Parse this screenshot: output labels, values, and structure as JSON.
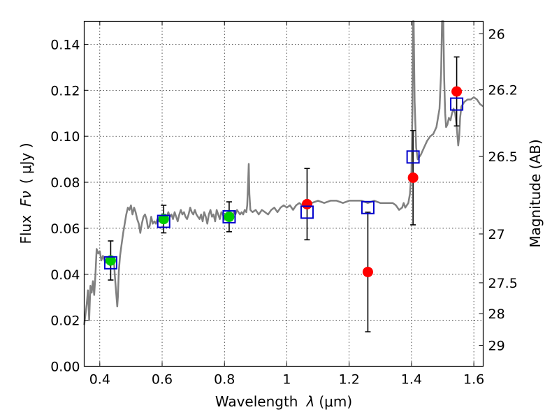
{
  "chart_data": {
    "type": "scatter",
    "xlabel_prefix": "Wavelength",
    "xlabel_symbol": "λ",
    "xlabel_unit": "(μm)",
    "ylabel_prefix": "Flux",
    "ylabel_symbol": "Fν",
    "ylabel_unit": "( μJy )",
    "y2label": "Magnitude (AB)",
    "xlim": [
      0.35,
      1.63
    ],
    "ylim": [
      0.0,
      0.15
    ],
    "grid": true,
    "x_ticks": [
      {
        "value": 0.4,
        "label": "0.4"
      },
      {
        "value": 0.6,
        "label": "0.6"
      },
      {
        "value": 0.8,
        "label": "0.8"
      },
      {
        "value": 1.0,
        "label": "1"
      },
      {
        "value": 1.2,
        "label": "1.2"
      },
      {
        "value": 1.4,
        "label": "1.4"
      },
      {
        "value": 1.6,
        "label": "1.6"
      }
    ],
    "y_ticks": [
      {
        "value": 0.0,
        "label": "0.00"
      },
      {
        "value": 0.02,
        "label": "0.02"
      },
      {
        "value": 0.04,
        "label": "0.04"
      },
      {
        "value": 0.06,
        "label": "0.06"
      },
      {
        "value": 0.08,
        "label": "0.08"
      },
      {
        "value": 0.1,
        "label": "0.10"
      },
      {
        "value": 0.12,
        "label": "0.12"
      },
      {
        "value": 0.14,
        "label": "0.14"
      }
    ],
    "y2_ticks": [
      {
        "magnitude": 26,
        "label": "26"
      },
      {
        "magnitude": 26.2,
        "label": "26.2"
      },
      {
        "magnitude": 26.5,
        "label": "26.5"
      },
      {
        "magnitude": 27,
        "label": "27"
      },
      {
        "magnitude": 27.5,
        "label": "27.5"
      },
      {
        "magnitude": 28,
        "label": "28"
      },
      {
        "magnitude": 29,
        "label": "29"
      }
    ],
    "spectrum": {
      "color": "#808080",
      "points": [
        [
          0.35,
          0.018
        ],
        [
          0.358,
          0.027
        ],
        [
          0.362,
          0.033
        ],
        [
          0.366,
          0.02
        ],
        [
          0.37,
          0.035
        ],
        [
          0.374,
          0.032
        ],
        [
          0.378,
          0.037
        ],
        [
          0.382,
          0.031
        ],
        [
          0.386,
          0.04
        ],
        [
          0.39,
          0.051
        ],
        [
          0.395,
          0.049
        ],
        [
          0.4,
          0.05
        ],
        [
          0.405,
          0.046
        ],
        [
          0.41,
          0.048
        ],
        [
          0.418,
          0.045
        ],
        [
          0.425,
          0.047
        ],
        [
          0.432,
          0.044
        ],
        [
          0.44,
          0.046
        ],
        [
          0.445,
          0.047
        ],
        [
          0.448,
          0.04
        ],
        [
          0.452,
          0.033
        ],
        [
          0.456,
          0.026
        ],
        [
          0.458,
          0.03
        ],
        [
          0.461,
          0.041
        ],
        [
          0.465,
          0.048
        ],
        [
          0.47,
          0.053
        ],
        [
          0.475,
          0.058
        ],
        [
          0.48,
          0.062
        ],
        [
          0.485,
          0.066
        ],
        [
          0.49,
          0.069
        ],
        [
          0.495,
          0.068
        ],
        [
          0.5,
          0.07
        ],
        [
          0.505,
          0.066
        ],
        [
          0.51,
          0.069
        ],
        [
          0.515,
          0.067
        ],
        [
          0.52,
          0.064
        ],
        [
          0.525,
          0.062
        ],
        [
          0.53,
          0.058
        ],
        [
          0.535,
          0.062
        ],
        [
          0.54,
          0.065
        ],
        [
          0.545,
          0.066
        ],
        [
          0.55,
          0.064
        ],
        [
          0.555,
          0.06
        ],
        [
          0.56,
          0.061
        ],
        [
          0.565,
          0.065
        ],
        [
          0.57,
          0.062
        ],
        [
          0.575,
          0.063
        ],
        [
          0.58,
          0.062
        ],
        [
          0.585,
          0.064
        ],
        [
          0.59,
          0.063
        ],
        [
          0.595,
          0.065
        ],
        [
          0.6,
          0.066
        ],
        [
          0.605,
          0.064
        ],
        [
          0.61,
          0.066
        ],
        [
          0.615,
          0.065
        ],
        [
          0.62,
          0.067
        ],
        [
          0.625,
          0.065
        ],
        [
          0.63,
          0.066
        ],
        [
          0.635,
          0.064
        ],
        [
          0.64,
          0.067
        ],
        [
          0.645,
          0.065
        ],
        [
          0.65,
          0.063
        ],
        [
          0.655,
          0.066
        ],
        [
          0.66,
          0.068
        ],
        [
          0.665,
          0.066
        ],
        [
          0.67,
          0.067
        ],
        [
          0.675,
          0.065
        ],
        [
          0.68,
          0.064
        ],
        [
          0.685,
          0.066
        ],
        [
          0.69,
          0.069
        ],
        [
          0.695,
          0.067
        ],
        [
          0.7,
          0.066
        ],
        [
          0.705,
          0.068
        ],
        [
          0.71,
          0.066
        ],
        [
          0.715,
          0.065
        ],
        [
          0.72,
          0.064
        ],
        [
          0.725,
          0.066
        ],
        [
          0.73,
          0.063
        ],
        [
          0.735,
          0.067
        ],
        [
          0.74,
          0.065
        ],
        [
          0.745,
          0.062
        ],
        [
          0.75,
          0.066
        ],
        [
          0.755,
          0.068
        ],
        [
          0.76,
          0.065
        ],
        [
          0.765,
          0.066
        ],
        [
          0.77,
          0.063
        ],
        [
          0.775,
          0.068
        ],
        [
          0.78,
          0.066
        ],
        [
          0.785,
          0.064
        ],
        [
          0.79,
          0.067
        ],
        [
          0.795,
          0.066
        ],
        [
          0.8,
          0.064
        ],
        [
          0.805,
          0.066
        ],
        [
          0.81,
          0.065
        ],
        [
          0.815,
          0.067
        ],
        [
          0.82,
          0.066
        ],
        [
          0.825,
          0.064
        ],
        [
          0.83,
          0.067
        ],
        [
          0.835,
          0.066
        ],
        [
          0.84,
          0.068
        ],
        [
          0.845,
          0.067
        ],
        [
          0.85,
          0.066
        ],
        [
          0.855,
          0.067
        ],
        [
          0.86,
          0.066
        ],
        [
          0.865,
          0.068
        ],
        [
          0.87,
          0.067
        ],
        [
          0.873,
          0.07
        ],
        [
          0.876,
          0.08
        ],
        [
          0.878,
          0.088
        ],
        [
          0.88,
          0.075
        ],
        [
          0.883,
          0.068
        ],
        [
          0.89,
          0.067
        ],
        [
          0.9,
          0.068
        ],
        [
          0.91,
          0.066
        ],
        [
          0.92,
          0.068
        ],
        [
          0.93,
          0.067
        ],
        [
          0.94,
          0.066
        ],
        [
          0.95,
          0.068
        ],
        [
          0.96,
          0.069
        ],
        [
          0.97,
          0.067
        ],
        [
          0.98,
          0.069
        ],
        [
          0.99,
          0.07
        ],
        [
          1.0,
          0.069
        ],
        [
          1.01,
          0.07
        ],
        [
          1.02,
          0.068
        ],
        [
          1.03,
          0.07
        ],
        [
          1.04,
          0.071
        ],
        [
          1.05,
          0.07
        ],
        [
          1.06,
          0.071
        ],
        [
          1.08,
          0.071
        ],
        [
          1.1,
          0.072
        ],
        [
          1.12,
          0.071
        ],
        [
          1.14,
          0.072
        ],
        [
          1.16,
          0.072
        ],
        [
          1.18,
          0.071
        ],
        [
          1.2,
          0.072
        ],
        [
          1.22,
          0.072
        ],
        [
          1.24,
          0.072
        ],
        [
          1.26,
          0.071
        ],
        [
          1.28,
          0.072
        ],
        [
          1.3,
          0.071
        ],
        [
          1.32,
          0.071
        ],
        [
          1.34,
          0.071
        ],
        [
          1.35,
          0.07
        ],
        [
          1.36,
          0.068
        ],
        [
          1.37,
          0.069
        ],
        [
          1.375,
          0.071
        ],
        [
          1.38,
          0.069
        ],
        [
          1.385,
          0.07
        ],
        [
          1.39,
          0.071
        ],
        [
          1.395,
          0.075
        ],
        [
          1.4,
          0.085
        ],
        [
          1.403,
          0.11
        ],
        [
          1.405,
          0.15
        ],
        [
          1.407,
          0.15
        ],
        [
          1.41,
          0.115
        ],
        [
          1.415,
          0.095
        ],
        [
          1.42,
          0.09
        ],
        [
          1.43,
          0.092
        ],
        [
          1.44,
          0.095
        ],
        [
          1.45,
          0.098
        ],
        [
          1.46,
          0.1
        ],
        [
          1.47,
          0.101
        ],
        [
          1.48,
          0.104
        ],
        [
          1.49,
          0.112
        ],
        [
          1.495,
          0.128
        ],
        [
          1.498,
          0.15
        ],
        [
          1.502,
          0.15
        ],
        [
          1.505,
          0.125
        ],
        [
          1.508,
          0.11
        ],
        [
          1.511,
          0.104
        ],
        [
          1.515,
          0.105
        ],
        [
          1.52,
          0.108
        ],
        [
          1.525,
          0.107
        ],
        [
          1.53,
          0.11
        ],
        [
          1.535,
          0.112
        ],
        [
          1.54,
          0.11
        ],
        [
          1.545,
          0.104
        ],
        [
          1.55,
          0.096
        ],
        [
          1.553,
          0.1
        ],
        [
          1.556,
          0.108
        ],
        [
          1.56,
          0.113
        ],
        [
          1.57,
          0.115
        ],
        [
          1.58,
          0.116
        ],
        [
          1.59,
          0.116
        ],
        [
          1.6,
          0.117
        ],
        [
          1.61,
          0.116
        ],
        [
          1.62,
          0.114
        ],
        [
          1.63,
          0.113
        ]
      ]
    },
    "observed_green": {
      "color": "#00cc00",
      "points": [
        {
          "x": 0.435,
          "y": 0.046,
          "err": 0.0085
        },
        {
          "x": 0.605,
          "y": 0.064,
          "err": 0.006
        },
        {
          "x": 0.815,
          "y": 0.065,
          "err": 0.0065
        }
      ]
    },
    "observed_red": {
      "color": "#ff0000",
      "points": [
        {
          "x": 1.065,
          "y": 0.0705,
          "err": 0.0155
        },
        {
          "x": 1.26,
          "y": 0.041,
          "err": 0.026
        },
        {
          "x": 1.405,
          "y": 0.082,
          "err": 0.0205
        },
        {
          "x": 1.545,
          "y": 0.1195,
          "err": 0.015
        }
      ]
    },
    "model_photometry": {
      "color": "#0000cc",
      "points": [
        {
          "x": 0.435,
          "y": 0.045
        },
        {
          "x": 0.605,
          "y": 0.063
        },
        {
          "x": 0.815,
          "y": 0.065
        },
        {
          "x": 1.065,
          "y": 0.067
        },
        {
          "x": 1.26,
          "y": 0.069
        },
        {
          "x": 1.405,
          "y": 0.091
        },
        {
          "x": 1.545,
          "y": 0.114
        }
      ]
    }
  }
}
